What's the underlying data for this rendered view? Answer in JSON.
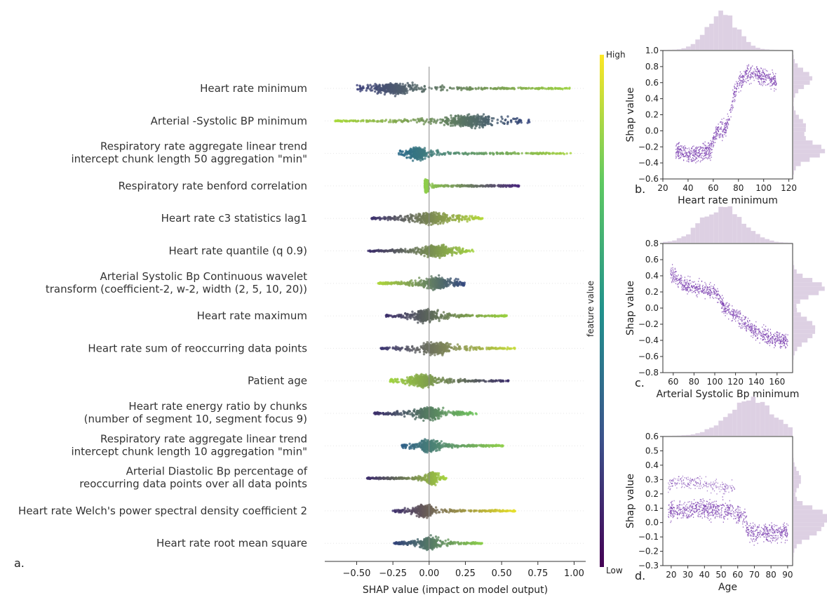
{
  "chart_data": [
    {
      "type": "scatter",
      "subtype": "shap-beeswarm",
      "panel_label": "a.",
      "xlabel": "SHAP value (impact on model output)",
      "xlim": [
        -0.72,
        1.08
      ],
      "xticks": [
        -0.5,
        -0.25,
        0.0,
        0.25,
        0.5,
        0.75,
        1.0
      ],
      "xtick_labels": [
        "−0.50",
        "−0.25",
        "0.00",
        "0.25",
        "0.50",
        "0.75",
        "1.00"
      ],
      "colorbar": {
        "label": "feature value",
        "high": "High",
        "low": "Low",
        "colors": [
          "#440154",
          "#3b528b",
          "#21918c",
          "#5ec962",
          "#fde725"
        ]
      },
      "features": [
        {
          "label": [
            "Heart rate minimum"
          ],
          "min": -0.5,
          "max": 0.98,
          "neg_color": "#3b3f7a",
          "pos_color": "#9bd23e",
          "mode": -0.25,
          "mode_width": 0.5
        },
        {
          "label": [
            "Arterial -Systolic BP minimum"
          ],
          "min": -0.65,
          "max": 0.7,
          "neg_color": "#a8d93a",
          "pos_color": "#2f3f7a",
          "mode": 0.28,
          "mode_width": 0.6
        },
        {
          "label": [
            "Respiratory rate aggregate linear trend",
            "intercept chunk length 50 aggregation \"min\""
          ],
          "min": -0.21,
          "max": 0.98,
          "neg_color": "#2b6a8a",
          "pos_color": "#a6d43c",
          "mode": -0.08,
          "mode_width": 0.25
        },
        {
          "label": [
            "Respiratory rate benford correlation"
          ],
          "min": -0.03,
          "max": 0.62,
          "neg_color": "#8fcf4a",
          "pos_color": "#46237a",
          "mode": -0.02,
          "mode_width": 0.04
        },
        {
          "label": [
            "Heart rate c3 statistics lag1"
          ],
          "min": -0.4,
          "max": 0.37,
          "neg_color": "#3b2f6e",
          "pos_color": "#b4d83a",
          "mode": 0.02,
          "mode_width": 0.35
        },
        {
          "label": [
            "Heart rate quantile (q 0.9)"
          ],
          "min": -0.42,
          "max": 0.31,
          "neg_color": "#3a2c6a",
          "pos_color": "#a4d440",
          "mode": 0.05,
          "mode_width": 0.3
        },
        {
          "label": [
            "Arterial Systolic Bp Continuous wavelet",
            "transform (coefficient-2, w-2, width (2, 5, 10, 20))"
          ],
          "min": -0.36,
          "max": 0.25,
          "neg_color": "#b0d83a",
          "pos_color": "#31457e",
          "mode": 0.05,
          "mode_width": 0.3
        },
        {
          "label": [
            "Heart rate maximum"
          ],
          "min": -0.3,
          "max": 0.54,
          "neg_color": "#3a2c6a",
          "pos_color": "#9ad23f",
          "mode": -0.02,
          "mode_width": 0.25
        },
        {
          "label": [
            "Heart rate sum of reoccurring data points"
          ],
          "min": -0.34,
          "max": 0.6,
          "neg_color": "#3b3473",
          "pos_color": "#c6dd3a",
          "mode": 0.05,
          "mode_width": 0.3
        },
        {
          "label": [
            "Patient age"
          ],
          "min": -0.27,
          "max": 0.55,
          "neg_color": "#a0d43f",
          "pos_color": "#3a2c6a",
          "mode": -0.05,
          "mode_width": 0.3
        },
        {
          "label": [
            "Heart rate energy ratio by chunks",
            "(number of segment 10, segment focus 9)"
          ],
          "min": -0.38,
          "max": 0.33,
          "neg_color": "#3a2c6a",
          "pos_color": "#6fc65a",
          "mode": 0.0,
          "mode_width": 0.3
        },
        {
          "label": [
            "Respiratory rate aggregate linear trend",
            "intercept chunk length 10 aggregation \"min\""
          ],
          "min": -0.19,
          "max": 0.51,
          "neg_color": "#2d5f88",
          "pos_color": "#8fcf4a",
          "mode": 0.0,
          "mode_width": 0.2
        },
        {
          "label": [
            "Arterial Diastolic Bp percentage of",
            "reoccurring data points over all data points"
          ],
          "min": -0.43,
          "max": 0.12,
          "neg_color": "#3b2a6b",
          "pos_color": "#a6d43e",
          "mode": 0.02,
          "mode_width": 0.1
        },
        {
          "label": [
            "Heart rate Welch's power spectral density coefficient 2"
          ],
          "min": -0.25,
          "max": 0.6,
          "neg_color": "#3a2c6a",
          "pos_color": "#e8e228",
          "mode": -0.03,
          "mode_width": 0.2
        },
        {
          "label": [
            "Heart rate root mean square"
          ],
          "min": -0.25,
          "max": 0.37,
          "neg_color": "#2f3f7a",
          "pos_color": "#8ccf4a",
          "mode": 0.0,
          "mode_width": 0.2
        }
      ]
    },
    {
      "type": "scatter",
      "subtype": "shap-dependence-with-marginal-histograms",
      "panel_label": "b.",
      "xlabel": "Heart rate minimum",
      "ylabel": "Shap value",
      "xlim": [
        20,
        123
      ],
      "ylim": [
        -0.6,
        1.0
      ],
      "xticks": [
        20,
        40,
        60,
        80,
        100,
        120
      ],
      "yticks": [
        -0.6,
        -0.4,
        -0.2,
        0.0,
        0.2,
        0.4,
        0.6,
        0.8,
        1.0
      ],
      "ytick_labels": [
        "−0.6",
        "−0.4",
        "−0.2",
        "0.0",
        "0.2",
        "0.4",
        "0.6",
        "0.8",
        "1.0"
      ],
      "trend": [
        [
          30,
          -0.25
        ],
        [
          40,
          -0.28
        ],
        [
          50,
          -0.27
        ],
        [
          58,
          -0.22
        ],
        [
          62,
          0.0
        ],
        [
          66,
          0.03
        ],
        [
          70,
          0.05
        ],
        [
          73,
          0.2
        ],
        [
          76,
          0.45
        ],
        [
          80,
          0.6
        ],
        [
          85,
          0.7
        ],
        [
          90,
          0.72
        ],
        [
          100,
          0.68
        ],
        [
          110,
          0.62
        ]
      ],
      "spread": 0.12,
      "x_hist_center": 67,
      "x_hist_sd": 12,
      "y_hist_peaks": [
        [
          -0.25,
          1.0
        ],
        [
          0.05,
          0.4
        ],
        [
          0.65,
          0.6
        ]
      ]
    },
    {
      "type": "scatter",
      "subtype": "shap-dependence-with-marginal-histograms",
      "panel_label": "c.",
      "xlabel": "Arterial Systolic Bp minimum",
      "ylabel": "Shap value",
      "xlim": [
        50,
        175
      ],
      "ylim": [
        -0.8,
        0.8
      ],
      "xticks": [
        60,
        80,
        100,
        120,
        140,
        160
      ],
      "yticks": [
        -0.8,
        -0.6,
        -0.4,
        -0.2,
        0.0,
        0.2,
        0.4,
        0.6,
        0.8
      ],
      "ytick_labels": [
        "−0.8",
        "−0.6",
        "−0.4",
        "−0.2",
        "0.0",
        "0.2",
        "0.4",
        "0.6",
        "0.8"
      ],
      "trend": [
        [
          57,
          0.45
        ],
        [
          65,
          0.35
        ],
        [
          70,
          0.3
        ],
        [
          80,
          0.26
        ],
        [
          90,
          0.24
        ],
        [
          100,
          0.2
        ],
        [
          105,
          0.1
        ],
        [
          110,
          0.0
        ],
        [
          120,
          -0.08
        ],
        [
          130,
          -0.18
        ],
        [
          140,
          -0.3
        ],
        [
          150,
          -0.35
        ],
        [
          160,
          -0.38
        ],
        [
          170,
          -0.4
        ]
      ],
      "spread": 0.1,
      "x_hist_center": 107,
      "x_hist_sd": 20,
      "y_hist_peaks": [
        [
          0.25,
          1.0
        ],
        [
          -0.2,
          0.5
        ],
        [
          -0.35,
          0.45
        ]
      ]
    },
    {
      "type": "scatter",
      "subtype": "shap-dependence-with-marginal-histograms",
      "panel_label": "d.",
      "xlabel": "Age",
      "ylabel": "Shap value",
      "xlim": [
        15,
        93
      ],
      "ylim": [
        -0.3,
        0.6
      ],
      "xticks": [
        20,
        30,
        40,
        50,
        60,
        70,
        80,
        90
      ],
      "yticks": [
        -0.3,
        -0.2,
        -0.1,
        0.0,
        0.1,
        0.2,
        0.3,
        0.4,
        0.5,
        0.6
      ],
      "ytick_labels": [
        "−0.3",
        "−0.2",
        "−0.1",
        "0.0",
        "0.1",
        "0.2",
        "0.3",
        "0.4",
        "0.5",
        "0.6"
      ],
      "trend": [
        [
          18,
          0.08
        ],
        [
          25,
          0.09
        ],
        [
          35,
          0.1
        ],
        [
          45,
          0.1
        ],
        [
          55,
          0.09
        ],
        [
          60,
          0.06
        ],
        [
          64,
          0.03
        ],
        [
          66,
          -0.05
        ],
        [
          70,
          -0.07
        ],
        [
          80,
          -0.07
        ],
        [
          90,
          -0.06
        ]
      ],
      "spread": 0.07,
      "extra_cluster": [
        [
          18,
          0.25
        ],
        [
          25,
          0.3
        ],
        [
          50,
          0.25
        ],
        [
          58,
          0.25
        ]
      ],
      "x_hist_center": 68,
      "x_hist_sd": 14,
      "y_hist_peaks": [
        [
          0.05,
          1.0
        ],
        [
          -0.06,
          0.7
        ],
        [
          0.3,
          0.25
        ]
      ]
    }
  ]
}
